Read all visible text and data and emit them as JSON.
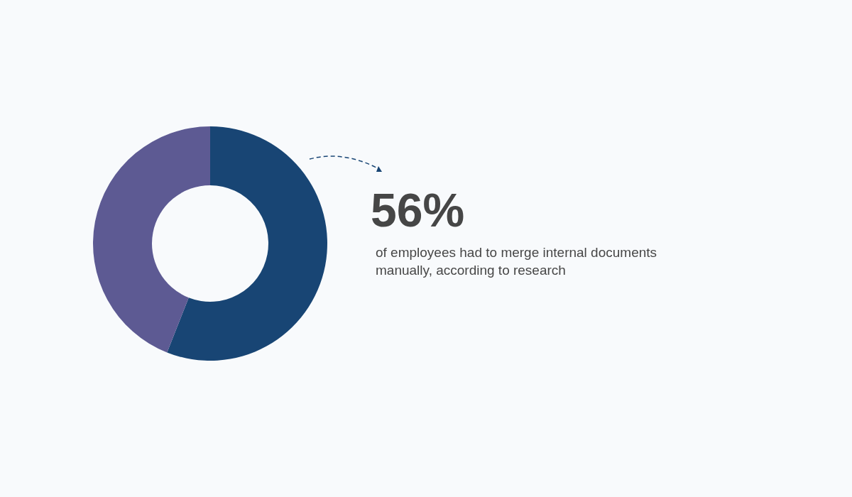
{
  "chart_data": {
    "type": "donut",
    "categories": [
      null,
      null
    ],
    "values": [
      56,
      44
    ],
    "colors": [
      "#184574",
      "#5d5a93"
    ],
    "value_labels": [
      "56%",
      null
    ],
    "annotations": [
      "of employees had to merge internal documents manually, according to research"
    ]
  }
}
